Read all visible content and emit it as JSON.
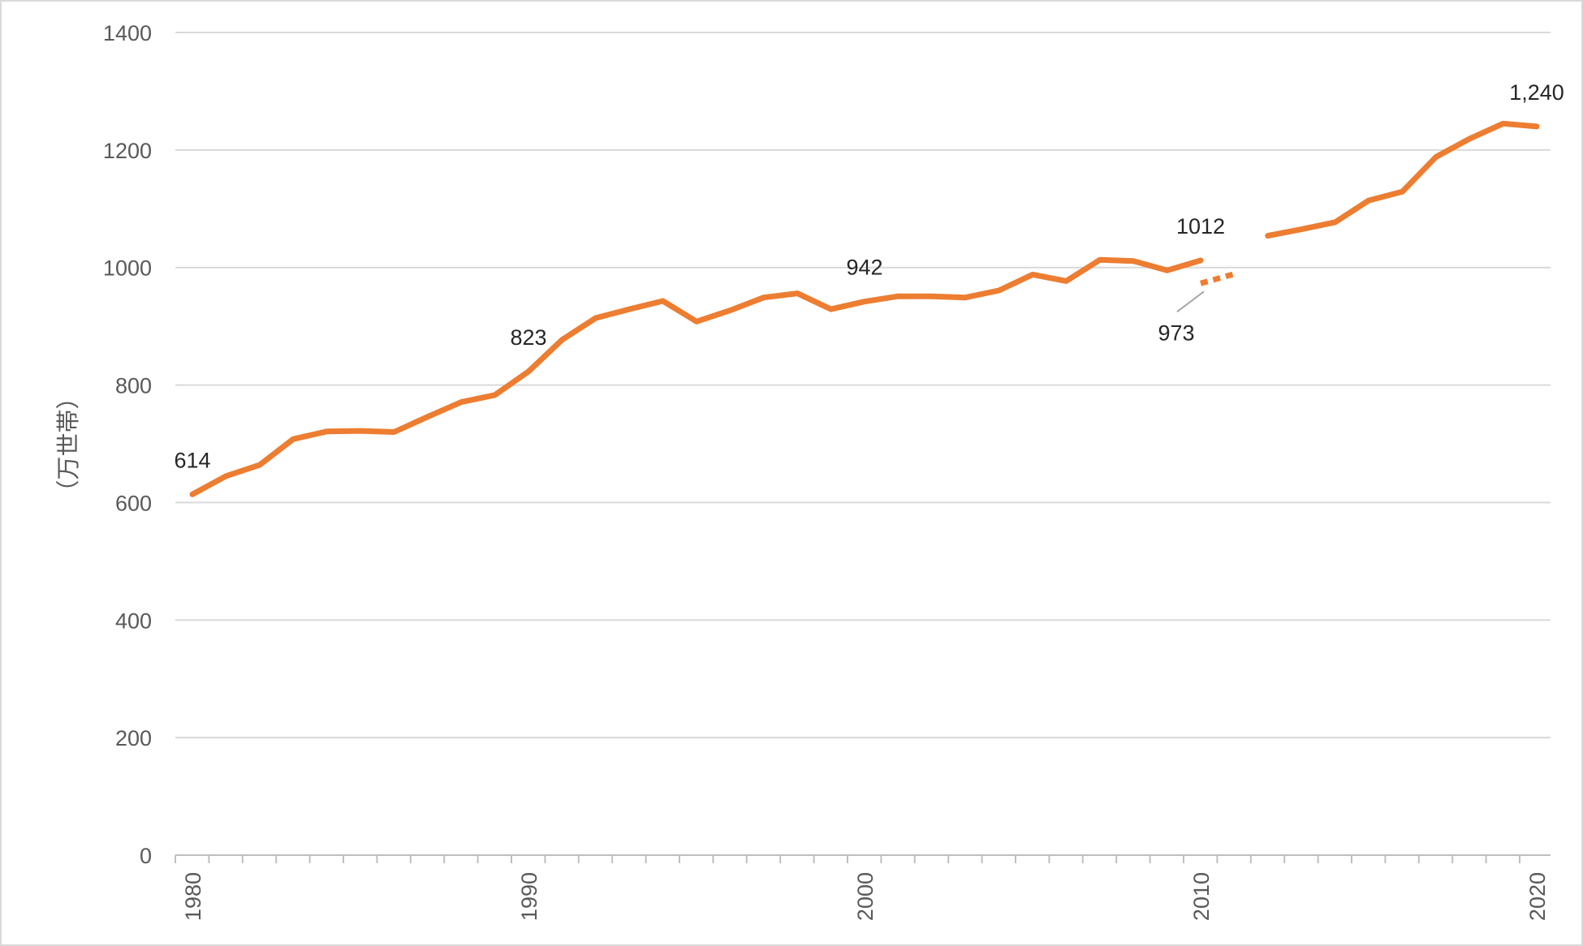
{
  "chart_data": {
    "type": "line",
    "ylabel": "（万世帯）",
    "xlabel": "",
    "ylim": [
      0,
      1400
    ],
    "yticks": [
      0,
      200,
      400,
      600,
      800,
      1000,
      1200,
      1400
    ],
    "xlim": [
      1980,
      2020
    ],
    "xtick_labels": [
      1980,
      1990,
      2000,
      2010,
      2020
    ],
    "grid": true,
    "legend": "none",
    "series_color": "#ED7D31",
    "series": [
      {
        "style": "solid",
        "points": [
          [
            1980,
            614
          ],
          [
            1981,
            645
          ],
          [
            1982,
            664
          ],
          [
            1983,
            708
          ],
          [
            1984,
            721
          ],
          [
            1985,
            722
          ],
          [
            1986,
            720
          ],
          [
            1987,
            746
          ],
          [
            1988,
            771
          ],
          [
            1989,
            783
          ],
          [
            1990,
            823
          ],
          [
            1991,
            877
          ],
          [
            1992,
            914
          ],
          [
            1993,
            929
          ],
          [
            1994,
            943
          ],
          [
            1995,
            908
          ],
          [
            1996,
            927
          ],
          [
            1997,
            949
          ],
          [
            1998,
            956
          ],
          [
            1999,
            929
          ],
          [
            2000,
            942
          ],
          [
            2001,
            951
          ],
          [
            2002,
            951
          ],
          [
            2003,
            949
          ],
          [
            2004,
            961
          ],
          [
            2005,
            988
          ],
          [
            2006,
            977
          ],
          [
            2007,
            1013
          ],
          [
            2008,
            1011
          ],
          [
            2009,
            995
          ],
          [
            2010,
            1012
          ]
        ]
      },
      {
        "style": "dashed",
        "points": [
          [
            2010,
            973
          ],
          [
            2011,
            989
          ]
        ]
      },
      {
        "style": "solid",
        "points": [
          [
            2012,
            1054
          ],
          [
            2013,
            1065
          ],
          [
            2014,
            1077
          ],
          [
            2015,
            1114
          ],
          [
            2016,
            1129
          ],
          [
            2017,
            1188
          ],
          [
            2018,
            1219
          ],
          [
            2019,
            1245
          ],
          [
            2020,
            1240
          ]
        ]
      }
    ],
    "annotations": [
      {
        "x": 1980,
        "y": 614,
        "text": "614",
        "pos": "above"
      },
      {
        "x": 1990,
        "y": 823,
        "text": "823",
        "pos": "above"
      },
      {
        "x": 2000,
        "y": 942,
        "text": "942",
        "pos": "above"
      },
      {
        "x": 2010,
        "y": 1012,
        "text": "1012",
        "pos": "above"
      },
      {
        "x": 2010,
        "y": 973,
        "text": "973",
        "pos": "below-leader"
      },
      {
        "x": 2020,
        "y": 1240,
        "text": "1,240",
        "pos": "above"
      }
    ]
  }
}
